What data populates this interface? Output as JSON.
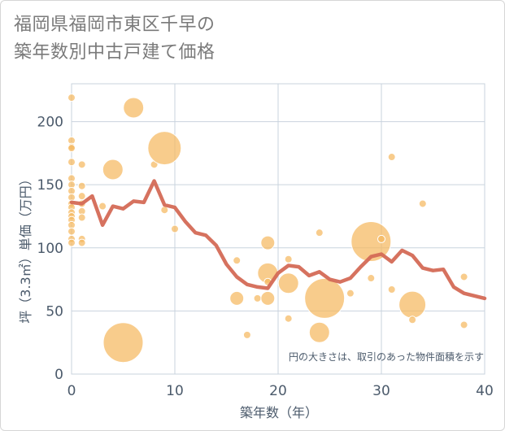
{
  "chart_data": {
    "type": "scatter",
    "title_lines": [
      "福岡県福岡市東区千早の",
      "築年数別中古戸建て価格"
    ],
    "xlabel": "築年数（年）",
    "ylabel": "坪（3.3㎡）単価（万円）",
    "xlim": [
      0,
      40
    ],
    "ylim": [
      0,
      230
    ],
    "x_ticks": [
      0,
      10,
      20,
      30,
      40
    ],
    "y_ticks": [
      0,
      50,
      100,
      150,
      200
    ],
    "grid": true,
    "note": "円の大きさは、取引のあった物件面積を示す",
    "colors": {
      "bubble": "#f5b95f",
      "line": "#d46a56",
      "grid": "#c9d3de",
      "text": "#4b5a6b"
    },
    "series": [
      {
        "type": "scatter",
        "points": [
          {
            "x": 0,
            "y": 219,
            "s": 1
          },
          {
            "x": 0,
            "y": 185,
            "s": 1
          },
          {
            "x": 0,
            "y": 180,
            "s": 1
          },
          {
            "x": 0,
            "y": 179,
            "s": 1
          },
          {
            "x": 0,
            "y": 168,
            "s": 1
          },
          {
            "x": 0,
            "y": 155,
            "s": 1
          },
          {
            "x": 0,
            "y": 150,
            "s": 1
          },
          {
            "x": 0,
            "y": 145,
            "s": 1
          },
          {
            "x": 0,
            "y": 140,
            "s": 1
          },
          {
            "x": 0,
            "y": 135,
            "s": 1
          },
          {
            "x": 0,
            "y": 132,
            "s": 1
          },
          {
            "x": 0,
            "y": 128,
            "s": 1
          },
          {
            "x": 0,
            "y": 125,
            "s": 1
          },
          {
            "x": 0,
            "y": 122,
            "s": 1
          },
          {
            "x": 0,
            "y": 118,
            "s": 1
          },
          {
            "x": 0,
            "y": 113,
            "s": 1
          },
          {
            "x": 0,
            "y": 107,
            "s": 1
          },
          {
            "x": 0,
            "y": 104,
            "s": 1
          },
          {
            "x": 1,
            "y": 166,
            "s": 1
          },
          {
            "x": 1,
            "y": 149,
            "s": 1
          },
          {
            "x": 1,
            "y": 141,
            "s": 1
          },
          {
            "x": 1,
            "y": 135,
            "s": 1
          },
          {
            "x": 1,
            "y": 129,
            "s": 1
          },
          {
            "x": 1,
            "y": 124,
            "s": 1
          },
          {
            "x": 1,
            "y": 107,
            "s": 1
          },
          {
            "x": 1,
            "y": 104,
            "s": 1
          },
          {
            "x": 3,
            "y": 133,
            "s": 1
          },
          {
            "x": 4,
            "y": 162,
            "s": 3
          },
          {
            "x": 5,
            "y": 25,
            "s": 6
          },
          {
            "x": 6,
            "y": 211,
            "s": 3
          },
          {
            "x": 8,
            "y": 166,
            "s": 1
          },
          {
            "x": 9,
            "y": 179,
            "s": 5
          },
          {
            "x": 9,
            "y": 130,
            "s": 1
          },
          {
            "x": 10,
            "y": 115,
            "s": 1
          },
          {
            "x": 16,
            "y": 90,
            "s": 1
          },
          {
            "x": 16,
            "y": 60,
            "s": 2
          },
          {
            "x": 17,
            "y": 31,
            "s": 1
          },
          {
            "x": 18,
            "y": 60,
            "s": 1
          },
          {
            "x": 19,
            "y": 104,
            "s": 2
          },
          {
            "x": 19,
            "y": 80,
            "s": 3
          },
          {
            "x": 19,
            "y": 60,
            "s": 2
          },
          {
            "x": 19,
            "y": 73,
            "s": 1
          },
          {
            "x": 21,
            "y": 91,
            "s": 1
          },
          {
            "x": 21,
            "y": 72,
            "s": 3
          },
          {
            "x": 21,
            "y": 44,
            "s": 1
          },
          {
            "x": 24,
            "y": 112,
            "s": 1
          },
          {
            "x": 24,
            "y": 33,
            "s": 3
          },
          {
            "x": 24.5,
            "y": 60,
            "s": 6
          },
          {
            "x": 27,
            "y": 64,
            "s": 1
          },
          {
            "x": 29,
            "y": 105,
            "s": 6
          },
          {
            "x": 29,
            "y": 76,
            "s": 1
          },
          {
            "x": 30,
            "y": 107,
            "s": 1
          },
          {
            "x": 31,
            "y": 172,
            "s": 1
          },
          {
            "x": 31,
            "y": 67,
            "s": 1
          },
          {
            "x": 33,
            "y": 55,
            "s": 4
          },
          {
            "x": 33,
            "y": 43,
            "s": 1
          },
          {
            "x": 34,
            "y": 135,
            "s": 1
          },
          {
            "x": 38,
            "y": 77,
            "s": 1
          },
          {
            "x": 38,
            "y": 39,
            "s": 1
          }
        ]
      },
      {
        "type": "line",
        "x": [
          0,
          1,
          2,
          3,
          4,
          5,
          6,
          7,
          8,
          9,
          10,
          11,
          12,
          13,
          14,
          15,
          16,
          17,
          18,
          19,
          20,
          21,
          22,
          23,
          24,
          25,
          26,
          27,
          28,
          29,
          30,
          31,
          32,
          33,
          34,
          35,
          36,
          37,
          38,
          39,
          40
        ],
        "y": [
          136,
          135,
          141,
          118,
          133,
          131,
          137,
          136,
          153,
          134,
          132,
          121,
          112,
          110,
          102,
          87,
          77,
          71,
          69,
          68,
          80,
          86,
          85,
          78,
          81,
          75,
          73,
          76,
          85,
          93,
          95,
          89,
          98,
          94,
          84,
          82,
          83,
          69,
          64,
          62,
          60
        ]
      }
    ]
  }
}
